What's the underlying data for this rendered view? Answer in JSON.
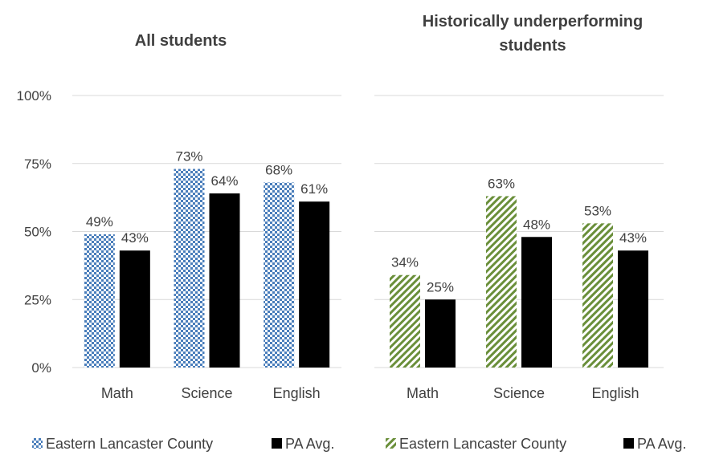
{
  "chart_data": [
    {
      "type": "bar",
      "title": "All students",
      "categories": [
        "Math",
        "Science",
        "English"
      ],
      "series": [
        {
          "name": "Eastern Lancaster County",
          "values": [
            49,
            73,
            68
          ],
          "color": "#4a7ebb",
          "pattern": "checker"
        },
        {
          "name": "PA Avg.",
          "values": [
            43,
            64,
            61
          ],
          "color": "#000000",
          "pattern": "solid"
        }
      ],
      "data_labels": [
        [
          "49%",
          "73%",
          "68%"
        ],
        [
          "43%",
          "64%",
          "61%"
        ]
      ],
      "yticks": [
        "100%",
        "75%",
        "50%",
        "25%",
        "0%"
      ],
      "ylim": [
        0,
        100
      ],
      "grid": true,
      "legend": "bottom"
    },
    {
      "type": "bar",
      "title_lines": [
        "Historically underperforming",
        "students"
      ],
      "categories": [
        "Math",
        "Science",
        "English"
      ],
      "series": [
        {
          "name": "Eastern Lancaster County",
          "values": [
            34,
            63,
            53
          ],
          "color": "#6a8f3a",
          "pattern": "diagonal-stripes"
        },
        {
          "name": "PA Avg.",
          "values": [
            25,
            48,
            43
          ],
          "color": "#000000",
          "pattern": "solid"
        }
      ],
      "data_labels": [
        [
          "34%",
          "63%",
          "53%"
        ],
        [
          "25%",
          "48%",
          "43%"
        ]
      ],
      "ylim": [
        0,
        100
      ],
      "grid": true,
      "legend": "bottom"
    }
  ]
}
